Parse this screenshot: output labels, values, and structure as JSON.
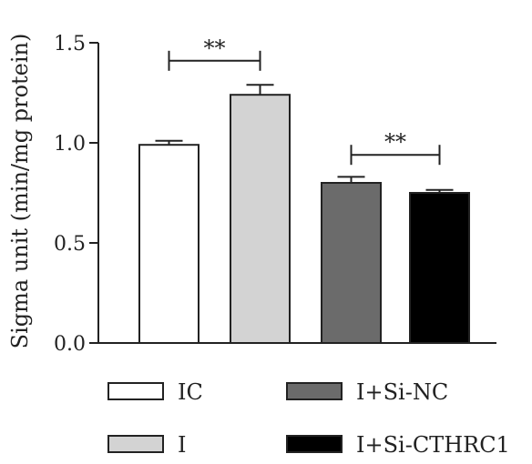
{
  "chart_data": {
    "type": "bar",
    "title": "",
    "xlabel": "",
    "ylabel": "Sigma unit (min/mg protein)",
    "ylim": [
      0,
      1.5
    ],
    "yticks": [
      0.0,
      0.5,
      1.0,
      1.5
    ],
    "ytick_labels": [
      "0.0",
      "0.5",
      "1.0",
      "1.5"
    ],
    "categories": [
      "IC",
      "I",
      "I+Si-NC",
      "I+Si-CTHRC1"
    ],
    "values": [
      0.99,
      1.24,
      0.8,
      0.75
    ],
    "errors": [
      0.02,
      0.05,
      0.03,
      0.015
    ],
    "colors": [
      "#ffffff",
      "#d3d3d3",
      "#6b6b6b",
      "#000000"
    ],
    "significance": [
      {
        "from": 0,
        "to": 1,
        "label": "**",
        "y": 1.41
      },
      {
        "from": 2,
        "to": 3,
        "label": "**",
        "y": 0.94
      }
    ],
    "legend": {
      "placement": "bottom",
      "entries": [
        "IC",
        "I",
        "I+Si-NC",
        "I+Si-CTHRC1"
      ]
    },
    "grid": false
  }
}
